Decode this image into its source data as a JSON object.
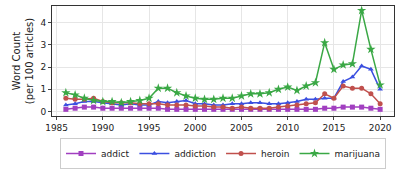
{
  "chart_data": {
    "type": "line",
    "y_label": "Word Count\n(per 100 articles)",
    "x": [
      1986,
      1987,
      1988,
      1989,
      1990,
      1991,
      1992,
      1993,
      1994,
      1995,
      1996,
      1997,
      1998,
      1999,
      2000,
      2001,
      2002,
      2003,
      2004,
      2005,
      2006,
      2007,
      2008,
      2009,
      2010,
      2011,
      2012,
      2013,
      2014,
      2015,
      2016,
      2017,
      2018,
      2019,
      2020
    ],
    "series": [
      {
        "name": "addict",
        "color": "#a13fc0",
        "marker": "square",
        "values": [
          0.1,
          0.15,
          0.2,
          0.2,
          0.15,
          0.15,
          0.15,
          0.15,
          0.15,
          0.15,
          0.15,
          0.1,
          0.1,
          0.1,
          0.1,
          0.1,
          0.1,
          0.1,
          0.1,
          0.1,
          0.1,
          0.1,
          0.1,
          0.1,
          0.1,
          0.1,
          0.1,
          0.1,
          0.15,
          0.15,
          0.2,
          0.2,
          0.2,
          0.15,
          0.1
        ]
      },
      {
        "name": "addiction",
        "color": "#3b4fe0",
        "marker": "triangle-up",
        "values": [
          0.3,
          0.35,
          0.45,
          0.45,
          0.4,
          0.35,
          0.3,
          0.35,
          0.3,
          0.3,
          0.45,
          0.4,
          0.45,
          0.5,
          0.35,
          0.35,
          0.3,
          0.3,
          0.35,
          0.35,
          0.4,
          0.4,
          0.35,
          0.35,
          0.4,
          0.45,
          0.55,
          0.55,
          0.6,
          0.6,
          1.35,
          1.55,
          2.05,
          1.9,
          1.0
        ]
      },
      {
        "name": "heroin",
        "color": "#c0504d",
        "marker": "circle",
        "values": [
          0.6,
          0.55,
          0.55,
          0.6,
          0.45,
          0.4,
          0.4,
          0.4,
          0.35,
          0.35,
          0.35,
          0.3,
          0.3,
          0.3,
          0.25,
          0.25,
          0.2,
          0.2,
          0.15,
          0.2,
          0.15,
          0.15,
          0.15,
          0.2,
          0.25,
          0.3,
          0.35,
          0.4,
          0.8,
          0.6,
          1.15,
          1.05,
          1.05,
          0.8,
          0.35
        ]
      },
      {
        "name": "marijuana",
        "color": "#3aa845",
        "marker": "star",
        "values": [
          0.85,
          0.75,
          0.6,
          0.5,
          0.45,
          0.45,
          0.4,
          0.45,
          0.5,
          0.6,
          1.05,
          1.05,
          0.85,
          0.7,
          0.6,
          0.55,
          0.55,
          0.6,
          0.6,
          0.7,
          0.8,
          0.8,
          0.85,
          1.0,
          1.1,
          0.95,
          1.15,
          1.3,
          3.1,
          1.9,
          2.1,
          2.15,
          4.55,
          2.8,
          1.2
        ]
      }
    ],
    "xlim": [
      1984.5,
      2021.5
    ],
    "xticks": [
      1985,
      1990,
      1995,
      2000,
      2005,
      2010,
      2015,
      2020
    ],
    "ylim": [
      -0.2,
      4.75
    ],
    "yticks": [
      0,
      1,
      2,
      3,
      4
    ],
    "grid": true,
    "legend": "bottom"
  }
}
